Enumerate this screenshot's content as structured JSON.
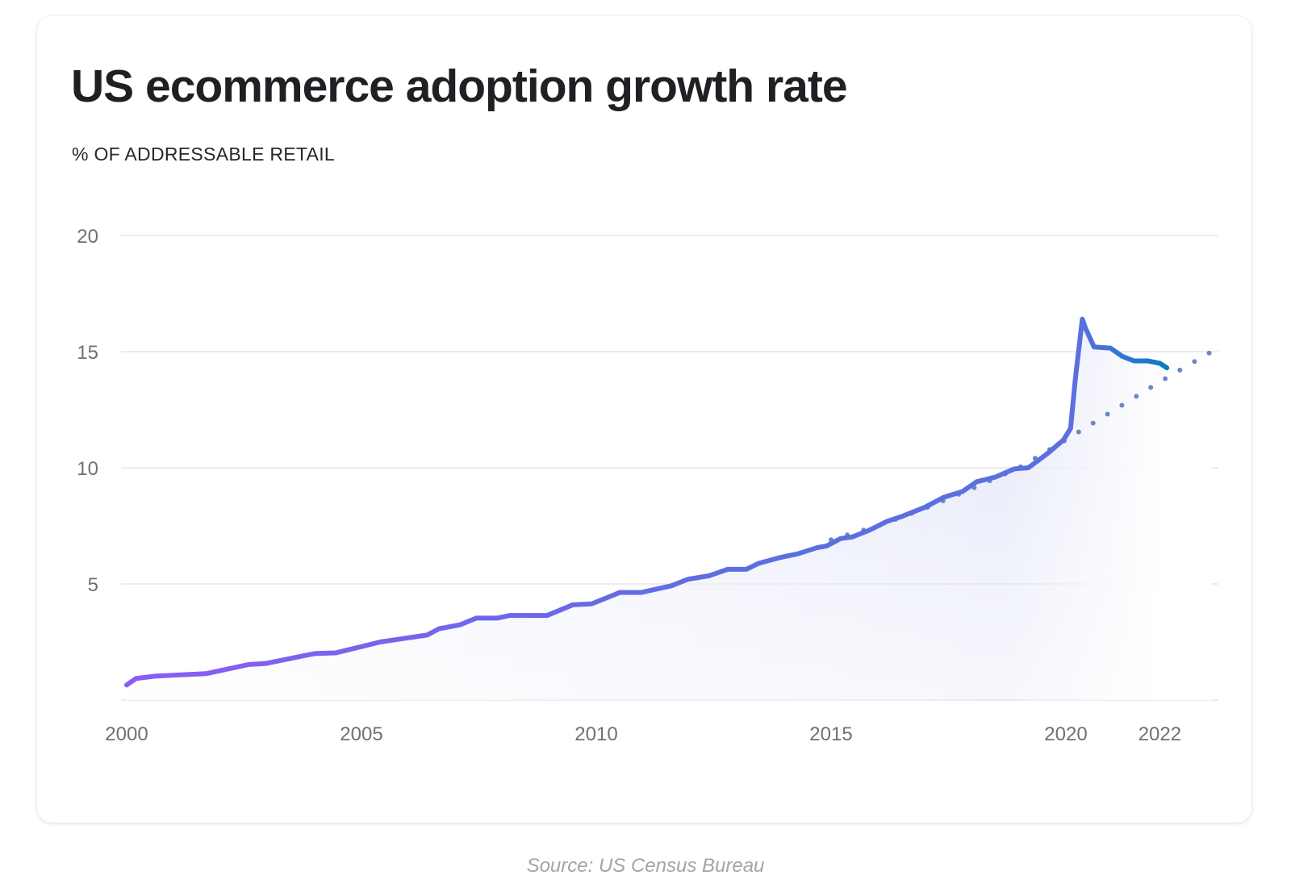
{
  "chart_data": {
    "type": "line",
    "title": "US ecommerce adoption growth rate",
    "ylabel": "% OF ADDRESSABLE RETAIL",
    "xlabel": "",
    "source": "Source: US Census Bureau",
    "xlim": [
      2000,
      2023.2
    ],
    "ylim": [
      0,
      20
    ],
    "grid": true,
    "x_ticks": [
      2000,
      2005,
      2010,
      2015,
      2020,
      2022
    ],
    "x_tick_labels": [
      "2000",
      "2005",
      "2010",
      "2015",
      "2020",
      "2022"
    ],
    "y_ticks": [
      0,
      5,
      10,
      15,
      20
    ],
    "y_tick_labels": [
      "",
      "5",
      "10",
      "15",
      "20"
    ],
    "colors": {
      "line_start": "#8b5cf6",
      "line_mid": "#5b6fe0",
      "line_end": "#0a7cc4",
      "trend": "#6b86c8",
      "fill": "#dfe2f7"
    },
    "series": [
      {
        "style": "solid",
        "x": [
          2000.0,
          2000.2,
          2000.6,
          2001.0,
          2001.7,
          2002.6,
          2002.95,
          2004.0,
          2004.45,
          2005.4,
          2006.4,
          2006.65,
          2007.1,
          2007.45,
          2007.9,
          2008.15,
          2008.95,
          2009.5,
          2009.9,
          2010.5,
          2010.95,
          2011.6,
          2011.95,
          2012.4,
          2012.8,
          2013.2,
          2013.45,
          2013.9,
          2014.3,
          2014.7,
          2014.9,
          2015.2,
          2015.45,
          2015.8,
          2016.2,
          2016.5,
          2017.0,
          2017.4,
          2017.8,
          2018.1,
          2018.5,
          2018.9,
          2019.2,
          2019.6,
          2019.95,
          2020.1,
          2020.2,
          2020.35,
          2020.42,
          2020.6,
          2020.95,
          2021.2,
          2021.45,
          2021.75,
          2022.0,
          2022.15
        ],
        "y": [
          0.65,
          0.93,
          1.03,
          1.07,
          1.14,
          1.53,
          1.57,
          2.0,
          2.03,
          2.5,
          2.8,
          3.07,
          3.24,
          3.53,
          3.53,
          3.64,
          3.64,
          4.1,
          4.14,
          4.63,
          4.63,
          4.92,
          5.2,
          5.35,
          5.63,
          5.63,
          5.88,
          6.13,
          6.3,
          6.56,
          6.63,
          6.95,
          7.02,
          7.3,
          7.7,
          7.9,
          8.3,
          8.73,
          8.98,
          9.4,
          9.6,
          9.95,
          10.0,
          10.6,
          11.2,
          11.7,
          13.8,
          16.4,
          16.0,
          15.2,
          15.15,
          14.8,
          14.6,
          14.6,
          14.5,
          14.3
        ]
      },
      {
        "style": "dotted",
        "x": [
          2015.0,
          2016.0,
          2017.0,
          2018.0,
          2019.0,
          2020.0,
          2021.0,
          2022.0,
          2023.1
        ],
        "y": [
          6.9,
          7.5,
          8.25,
          9.1,
          10.0,
          11.2,
          12.45,
          13.7,
          15.0
        ]
      }
    ]
  }
}
